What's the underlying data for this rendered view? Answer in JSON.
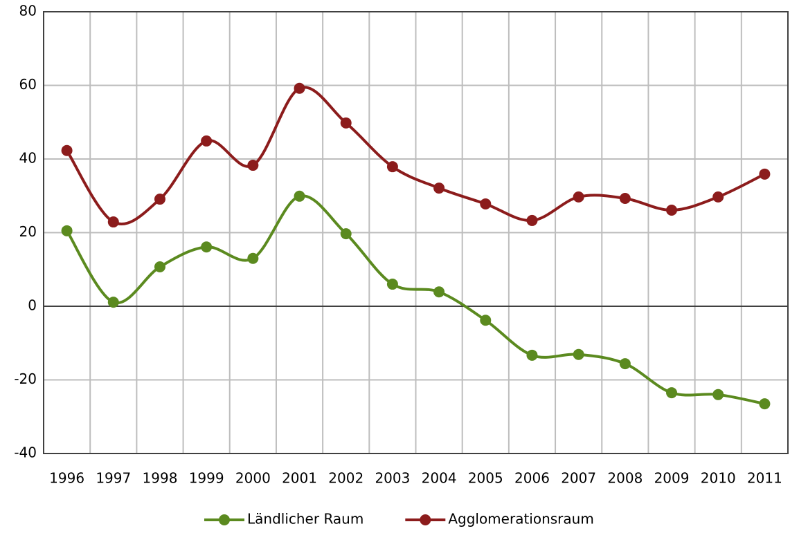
{
  "chart_data": {
    "type": "line",
    "categories": [
      "1996",
      "1997",
      "1998",
      "1999",
      "2000",
      "2001",
      "2002",
      "2003",
      "2004",
      "2005",
      "2006",
      "2007",
      "2008",
      "2009",
      "2010",
      "2011"
    ],
    "series": [
      {
        "name": "Ländlicher Raum",
        "color": "#5b8a1f",
        "values": [
          20.5,
          1.1,
          10.7,
          16.1,
          13,
          29.9,
          19.7,
          6,
          3.9,
          -3.8,
          -13.3,
          -13.1,
          -15.6,
          -23.5,
          -24,
          -26.5
        ]
      },
      {
        "name": "Agglomerationsraum",
        "color": "#8c1c1c",
        "values": [
          42.3,
          22.9,
          29.1,
          44.9,
          38.3,
          59.2,
          49.8,
          37.9,
          32.1,
          27.8,
          23.3,
          29.7,
          29.3,
          26.1,
          29.7,
          35.9
        ]
      }
    ],
    "ylim": [
      -40,
      80
    ],
    "yticks": [
      -40,
      -20,
      0,
      20,
      40,
      60,
      80
    ],
    "grid": true,
    "smooth": true,
    "legend": "bottom"
  }
}
